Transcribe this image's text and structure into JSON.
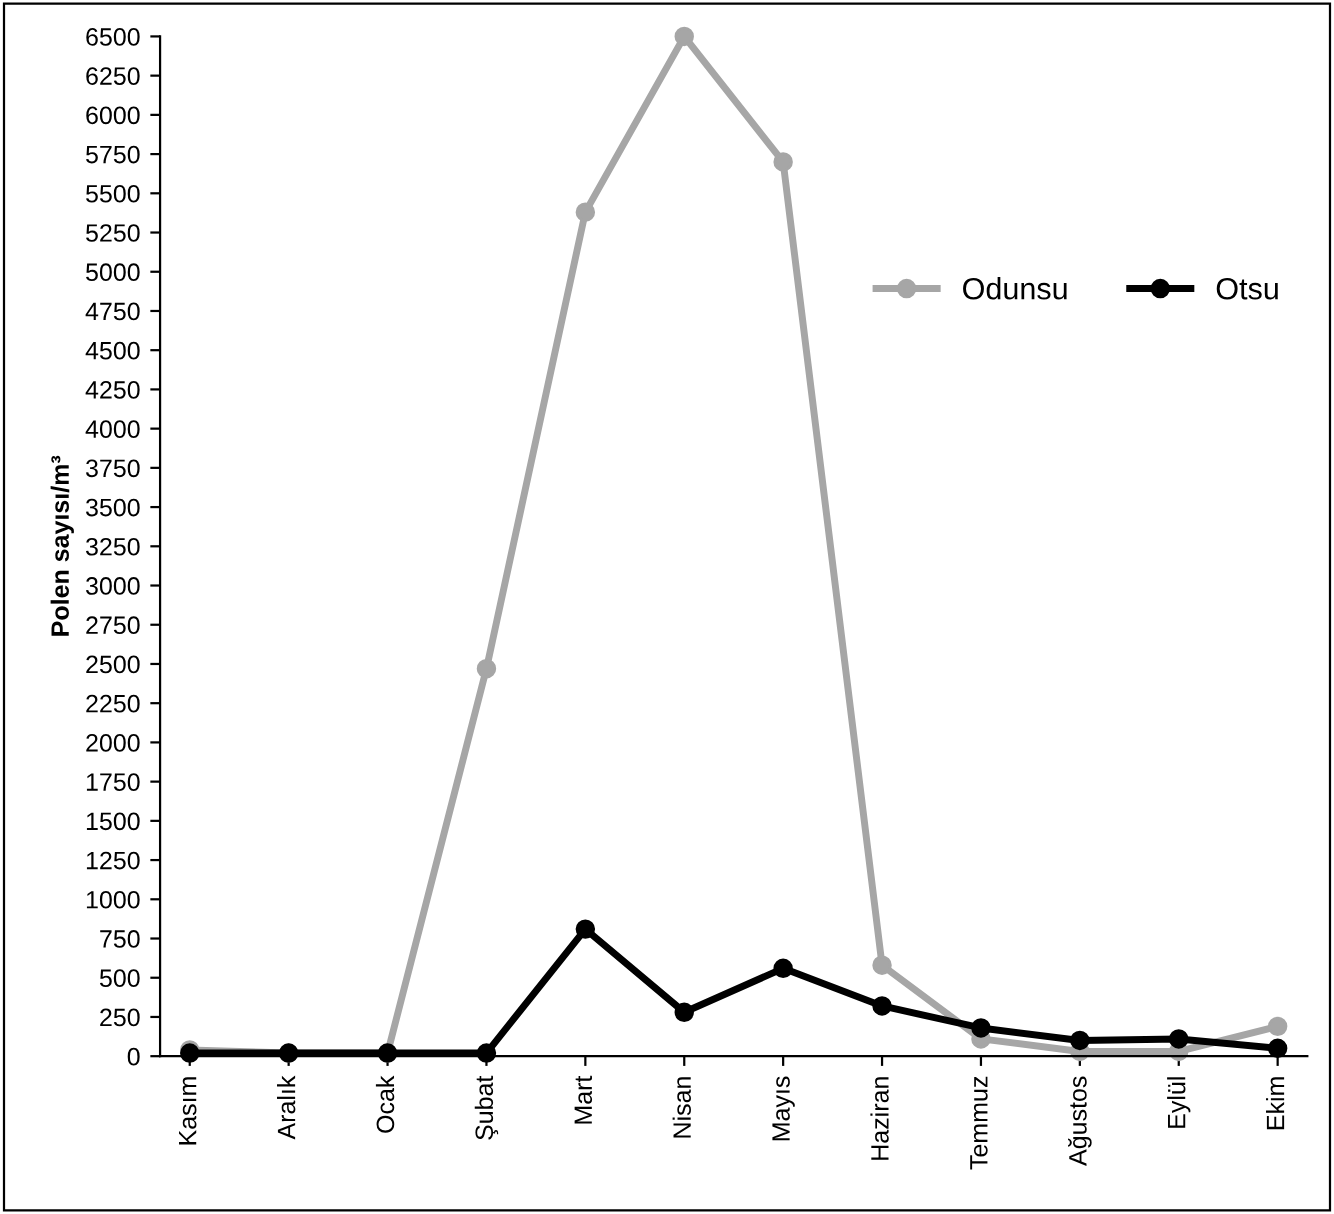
{
  "chart_data": {
    "type": "line",
    "ylabel": "Polen sayısı/m³",
    "categories": [
      "Kasım",
      "Aralık",
      "Ocak",
      "Şubat",
      "Mart",
      "Nisan",
      "Mayıs",
      "Haziran",
      "Temmuz",
      "Ağustos",
      "Eylül",
      "Ekim"
    ],
    "series": [
      {
        "name": "Odunsu",
        "color": "#a6a6a6",
        "values": [
          40,
          20,
          20,
          2470,
          5380,
          6500,
          5700,
          580,
          110,
          30,
          30,
          190
        ]
      },
      {
        "name": "Otsu",
        "color": "#000000",
        "values": [
          20,
          20,
          20,
          20,
          810,
          280,
          560,
          320,
          180,
          100,
          110,
          50
        ]
      }
    ],
    "ylim": [
      0,
      6500
    ],
    "yticks": [
      0,
      250,
      500,
      750,
      1000,
      1250,
      1500,
      1750,
      2000,
      2250,
      2500,
      2750,
      3000,
      3250,
      3500,
      3750,
      4000,
      4250,
      4500,
      4750,
      5000,
      5250,
      5500,
      5750,
      6000,
      6250,
      6500
    ],
    "grid": false,
    "legend": "right",
    "marker": "circle",
    "line_style": "solid"
  }
}
